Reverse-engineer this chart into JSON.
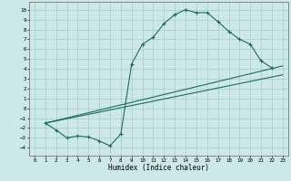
{
  "xlabel": "Humidex (Indice chaleur)",
  "bg_color": "#cce8e8",
  "grid_color": "#aacccc",
  "line_color": "#1e6b5e",
  "xlim": [
    -0.5,
    23.5
  ],
  "ylim": [
    -4.8,
    10.8
  ],
  "xticks": [
    0,
    1,
    2,
    3,
    4,
    5,
    6,
    7,
    8,
    9,
    10,
    11,
    12,
    13,
    14,
    15,
    16,
    17,
    18,
    19,
    20,
    21,
    22,
    23
  ],
  "yticks": [
    -4,
    -3,
    -2,
    -1,
    0,
    1,
    2,
    3,
    4,
    5,
    6,
    7,
    8,
    9,
    10
  ],
  "main_x": [
    1,
    2,
    3,
    4,
    5,
    6,
    7,
    8,
    9,
    10,
    11,
    12,
    13,
    14,
    15,
    16,
    17,
    18,
    19,
    20,
    21,
    22
  ],
  "main_y": [
    -1.5,
    -2.2,
    -3.0,
    -2.8,
    -2.9,
    -3.3,
    -3.8,
    -2.6,
    4.5,
    6.5,
    7.2,
    8.6,
    9.5,
    10.0,
    9.7,
    9.7,
    8.8,
    7.8,
    7.0,
    6.5,
    4.8,
    4.1
  ],
  "line1_x": [
    1,
    23
  ],
  "line1_y": [
    -1.5,
    4.3
  ],
  "line2_x": [
    1,
    23
  ],
  "line2_y": [
    -1.5,
    3.4
  ]
}
